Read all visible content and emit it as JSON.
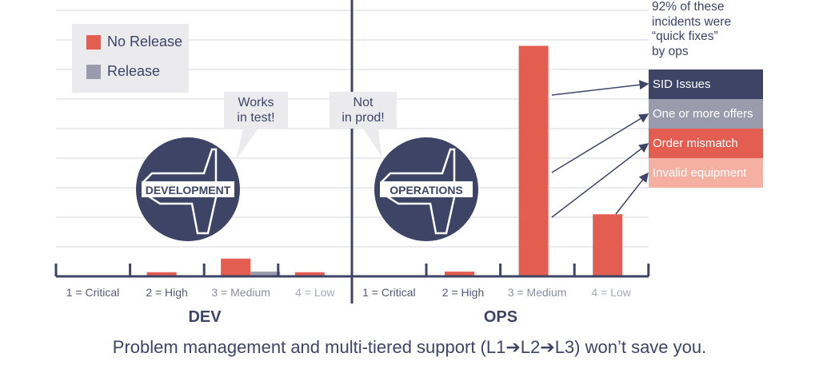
{
  "chart_data": {
    "type": "bar",
    "title": "",
    "groups": [
      {
        "name": "DEV",
        "categories": [
          "1 = Critical",
          "2 = High",
          "3 = Medium",
          "4 = Low"
        ],
        "series": [
          {
            "name": "No Release",
            "values": [
              0,
              0.14,
              0.6,
              0.14
            ]
          },
          {
            "name": "Release",
            "values": [
              0,
              0,
              0.16,
              0
            ]
          }
        ]
      },
      {
        "name": "OPS",
        "categories": [
          "1 = Critical",
          "2 = High",
          "3 = Medium",
          "4 = Low"
        ],
        "series": [
          {
            "name": "No Release",
            "values": [
              0,
              0.16,
              7.8,
              2.1
            ]
          },
          {
            "name": "Release",
            "values": [
              0,
              0,
              0,
              0
            ]
          }
        ]
      }
    ],
    "legend": {
      "placement": "top-left",
      "entries": [
        "No Release",
        "Release"
      ]
    },
    "ylim": [
      0,
      9
    ],
    "grid": true,
    "xlabel": "",
    "ylabel": ""
  },
  "colors": {
    "no_release": "#e35d50",
    "release": "#9a9cae",
    "navy": "#3d4466",
    "pink": "#f5b0a2",
    "grid": "#e4e4ea"
  },
  "bubbles": {
    "dev": [
      "Works",
      "in test!"
    ],
    "ops": [
      "Not",
      "in prod!"
    ]
  },
  "icons": {
    "dev_label": "DEVELOPMENT",
    "ops_label": "OPERATIONS"
  },
  "note": [
    "92% of these",
    "incidents were",
    "“quick fixes”",
    "by ops"
  ],
  "causes": [
    {
      "label": "SID Issues",
      "color": "#3d4466"
    },
    {
      "label": "One or more offers",
      "color": "#9a9cae"
    },
    {
      "label": "Order mismatch",
      "color": "#e35d50"
    },
    {
      "label": "Invalid equipment",
      "color": "#f5b0a2"
    }
  ],
  "footer": "Problem management and multi-tiered support (L1➔L2➔L3) won’t save you."
}
